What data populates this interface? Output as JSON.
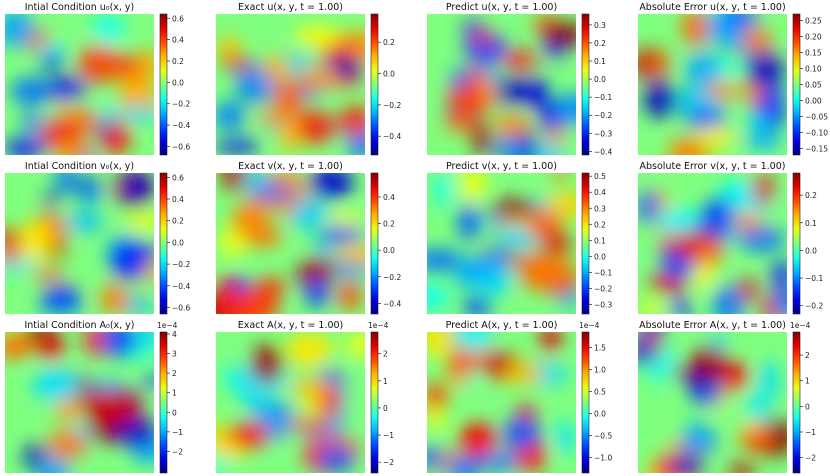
{
  "chart_data": [
    {
      "type": "heatmap",
      "title": "Intial Condition u₀(x, y)",
      "colormap": "jet",
      "field_seed": 1,
      "colorbar": {
        "min": -0.68,
        "max": 0.64,
        "ticks": [
          0.6,
          0.4,
          0.2,
          0.0,
          -0.2,
          -0.4,
          -0.6
        ],
        "tick_labels": [
          "0.6",
          "0.4",
          "0.2",
          "0.0",
          "−0.2",
          "−0.4",
          "−0.6"
        ],
        "multiplier": ""
      }
    },
    {
      "type": "heatmap",
      "title": "Exact u(x, y, t = 1.00)",
      "colormap": "jet",
      "field_seed": 2,
      "colorbar": {
        "min": -0.52,
        "max": 0.38,
        "ticks": [
          0.2,
          0.0,
          -0.2,
          -0.4
        ],
        "tick_labels": [
          "0.2",
          "0.0",
          "−0.2",
          "−0.4"
        ],
        "multiplier": ""
      }
    },
    {
      "type": "heatmap",
      "title": "Predict u(x, y, t = 1.00)",
      "colormap": "jet",
      "field_seed": 3,
      "colorbar": {
        "min": -0.42,
        "max": 0.36,
        "ticks": [
          0.3,
          0.2,
          0.1,
          0.0,
          -0.1,
          -0.2,
          -0.3,
          -0.4
        ],
        "tick_labels": [
          "0.3",
          "0.2",
          "0.1",
          "0.0",
          "−0.1",
          "−0.2",
          "−0.3",
          "−0.4"
        ],
        "multiplier": ""
      }
    },
    {
      "type": "heatmap",
      "title": "Absolute Error u(x, y, t = 1.00)",
      "colormap": "jet",
      "field_seed": 4,
      "colorbar": {
        "min": -0.17,
        "max": 0.27,
        "ticks": [
          0.25,
          0.2,
          0.15,
          0.1,
          0.05,
          0.0,
          -0.05,
          -0.1,
          -0.15
        ],
        "tick_labels": [
          "0.25",
          "0.20",
          "0.15",
          "0.10",
          "0.05",
          "0.00",
          "−0.05",
          "−0.10",
          "−0.15"
        ],
        "multiplier": ""
      }
    },
    {
      "type": "heatmap",
      "title": "Intial Condition v₀(x, y)",
      "colormap": "jet",
      "field_seed": 5,
      "colorbar": {
        "min": -0.66,
        "max": 0.64,
        "ticks": [
          0.6,
          0.4,
          0.2,
          0.0,
          -0.2,
          -0.4,
          -0.6
        ],
        "tick_labels": [
          "0.6",
          "0.4",
          "0.2",
          "0.0",
          "−0.2",
          "−0.4",
          "−0.6"
        ],
        "multiplier": ""
      }
    },
    {
      "type": "heatmap",
      "title": "Exact v(x, y, t = 1.00)",
      "colormap": "jet",
      "field_seed": 6,
      "colorbar": {
        "min": -0.48,
        "max": 0.58,
        "ticks": [
          0.4,
          0.2,
          0.0,
          -0.2,
          -0.4
        ],
        "tick_labels": [
          "0.4",
          "0.2",
          "0.0",
          "−0.2",
          "−0.4"
        ],
        "multiplier": ""
      }
    },
    {
      "type": "heatmap",
      "title": "Predict v(x, y, t = 1.00)",
      "colormap": "jet",
      "field_seed": 7,
      "colorbar": {
        "min": -0.36,
        "max": 0.52,
        "ticks": [
          0.5,
          0.4,
          0.3,
          0.2,
          0.1,
          0.0,
          -0.1,
          -0.2,
          -0.3
        ],
        "tick_labels": [
          "0.5",
          "0.4",
          "0.3",
          "0.2",
          "0.1",
          "0.0",
          "−0.1",
          "−0.2",
          "−0.3"
        ],
        "multiplier": ""
      }
    },
    {
      "type": "heatmap",
      "title": "Absolute Error v(x, y, t = 1.00)",
      "colormap": "jet",
      "field_seed": 8,
      "colorbar": {
        "min": -0.23,
        "max": 0.28,
        "ticks": [
          0.2,
          0.1,
          0.0,
          -0.1,
          -0.2
        ],
        "tick_labels": [
          "0.2",
          "0.1",
          "0.0",
          "−0.1",
          "−0.2"
        ],
        "multiplier": ""
      }
    },
    {
      "type": "heatmap",
      "title": "Intial Condition A₀(x, y)",
      "colormap": "jet",
      "field_seed": 9,
      "colorbar": {
        "min": -3.1,
        "max": 4.1,
        "ticks": [
          4,
          3,
          2,
          1,
          0,
          -1,
          -2
        ],
        "tick_labels": [
          "4",
          "3",
          "2",
          "1",
          "0",
          "−1",
          "−2"
        ],
        "multiplier": "1e−4"
      }
    },
    {
      "type": "heatmap",
      "title": "Exact A(x, y, t = 1.00)",
      "colormap": "jet",
      "field_seed": 10,
      "colorbar": {
        "min": -2.4,
        "max": 2.8,
        "ticks": [
          2,
          1,
          0,
          -1,
          -2
        ],
        "tick_labels": [
          "2",
          "1",
          "0",
          "−1",
          "−2"
        ],
        "multiplier": "1e−4"
      }
    },
    {
      "type": "heatmap",
      "title": "Predict A(x, y, t = 1.00)",
      "colormap": "jet",
      "field_seed": 11,
      "colorbar": {
        "min": -1.35,
        "max": 1.85,
        "ticks": [
          1.5,
          1.0,
          0.5,
          0.0,
          -0.5,
          -1.0
        ],
        "tick_labels": [
          "1.5",
          "1.0",
          "0.5",
          "0.0",
          "−0.5",
          "−1.0"
        ],
        "multiplier": "1e−4"
      }
    },
    {
      "type": "heatmap",
      "title": "Absolute Error A(x, y, t = 1.00)",
      "colormap": "jet",
      "field_seed": 12,
      "colorbar": {
        "min": -2.6,
        "max": 2.9,
        "ticks": [
          2,
          1,
          0,
          -1,
          -2
        ],
        "tick_labels": [
          "2",
          "1",
          "0",
          "−1",
          "−2"
        ],
        "multiplier": "1e−4"
      }
    }
  ]
}
